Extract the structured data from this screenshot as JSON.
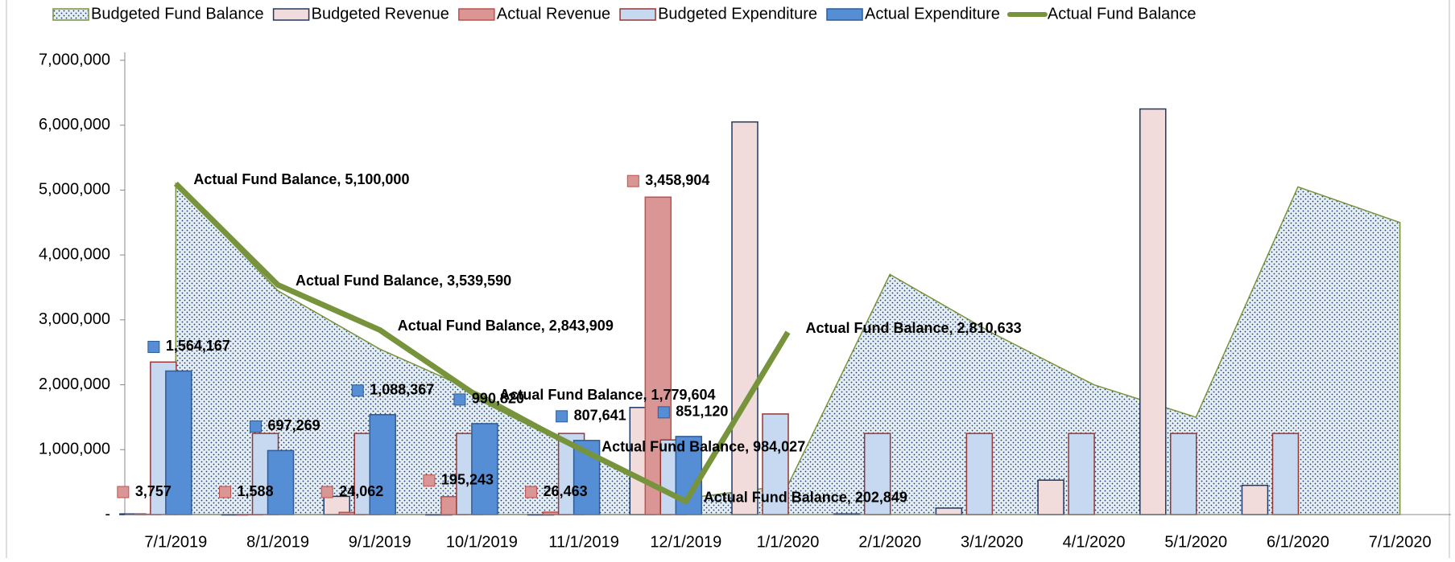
{
  "chart_data": {
    "type": "bar",
    "categories": [
      "7/1/2019",
      "8/1/2019",
      "9/1/2019",
      "10/1/2019",
      "11/1/2019",
      "12/1/2019",
      "1/1/2020",
      "2/1/2020",
      "3/1/2020",
      "4/1/2020",
      "5/1/2020",
      "6/1/2020",
      "7/1/2020"
    ],
    "ylim": [
      0,
      7000000
    ],
    "yticks": [
      {
        "value": 0,
        "label": "-"
      },
      {
        "value": 1000000,
        "label": "1,000,000"
      },
      {
        "value": 2000000,
        "label": "2,000,000"
      },
      {
        "value": 3000000,
        "label": "3,000,000"
      },
      {
        "value": 4000000,
        "label": "4,000,000"
      },
      {
        "value": 5000000,
        "label": "5,000,000"
      },
      {
        "value": 6000000,
        "label": "6,000,000"
      },
      {
        "value": 7000000,
        "label": "7,000,000"
      }
    ],
    "y2lim": [
      0,
      4950000
    ],
    "legend": "top",
    "series": [
      {
        "name": "Budgeted Fund Balance",
        "type": "area",
        "color": "#77933c",
        "values": [
          5100000,
          3450000,
          2550000,
          1850000,
          1000000,
          250000,
          450000,
          3700000,
          2800000,
          2000000,
          1500000,
          5050000,
          4500000
        ]
      },
      {
        "name": "Budgeted Revenue",
        "type": "bar",
        "color": "#f2dcdb",
        "edge": "#1f3864",
        "values": [
          10000,
          0,
          280000,
          0,
          0,
          1650000,
          6050000,
          10000,
          100000,
          530000,
          6250000,
          450000,
          null
        ]
      },
      {
        "name": "Actual Revenue",
        "type": "bar",
        "axis": "y2",
        "color": "#da9694",
        "edge": "#c0504d",
        "values": [
          3757,
          1588,
          24062,
          195243,
          26463,
          3458904,
          null,
          null,
          null,
          null,
          null,
          null,
          null
        ],
        "value_labels": [
          "3,757",
          "1,588",
          "24,062",
          "195,243",
          "26,463",
          "3,458,904",
          null,
          null,
          null,
          null,
          null,
          null,
          null
        ]
      },
      {
        "name": "Budgeted Expenditure",
        "type": "bar",
        "color": "#c6d9f1",
        "edge": "#953735",
        "values": [
          2350000,
          1250000,
          1250000,
          1250000,
          1250000,
          1150000,
          1550000,
          1250000,
          1250000,
          1250000,
          1250000,
          1250000,
          null
        ]
      },
      {
        "name": "Actual Expenditure",
        "type": "bar",
        "axis": "y2",
        "color": "#558ed5",
        "edge": "#2f5c96",
        "values": [
          1564167,
          697269,
          1088367,
          990820,
          807641,
          851120,
          null,
          null,
          null,
          null,
          null,
          null,
          null
        ],
        "value_labels": [
          "1,564,167",
          "697,269",
          "1,088,367",
          "990,820",
          "807,641",
          "851,120",
          null,
          null,
          null,
          null,
          null,
          null,
          null
        ]
      },
      {
        "name": "Actual Fund Balance",
        "type": "line",
        "color": "#77933c",
        "values": [
          5100000,
          3539590,
          2843909,
          1779604,
          984027,
          202849,
          2810633,
          null,
          null,
          null,
          null,
          null,
          null
        ],
        "value_labels": [
          "Actual Fund Balance, 5,100,000",
          "Actual Fund Balance, 3,539,590",
          "Actual Fund Balance, 2,843,909",
          "Actual Fund Balance, 1,779,604",
          "Actual Fund Balance, 984,027",
          "Actual Fund Balance, 202,849",
          "Actual Fund Balance, 2,810,633",
          null,
          null,
          null,
          null,
          null,
          null
        ]
      }
    ]
  }
}
